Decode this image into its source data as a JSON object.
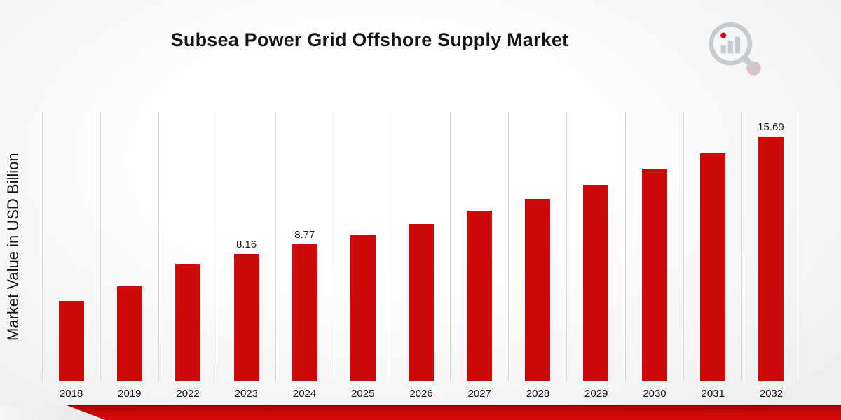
{
  "title": "Subsea Power Grid Offshore Supply Market",
  "ylabel": "Market Value in USD Billion",
  "logo": {
    "icon": "bar-chart-magnifier-logo"
  },
  "chart_data": {
    "type": "bar",
    "title": "Subsea Power Grid Offshore Supply Market",
    "xlabel": "",
    "ylabel": "Market Value in USD Billion",
    "categories": [
      "2018",
      "2019",
      "2022",
      "2023",
      "2024",
      "2025",
      "2026",
      "2027",
      "2028",
      "2029",
      "2030",
      "2031",
      "2032"
    ],
    "values": [
      5.15,
      6.1,
      7.55,
      8.16,
      8.77,
      9.4,
      10.1,
      10.95,
      11.7,
      12.6,
      13.6,
      14.6,
      15.69
    ],
    "data_labels": [
      null,
      null,
      null,
      "8.16",
      "8.77",
      null,
      null,
      null,
      null,
      null,
      null,
      null,
      "15.69"
    ],
    "bar_color": "#cc0a0a",
    "grid": "vertical-only",
    "gridline_color": "#d9d9d9",
    "legend": "none",
    "ylim": [
      0,
      17.25
    ]
  }
}
